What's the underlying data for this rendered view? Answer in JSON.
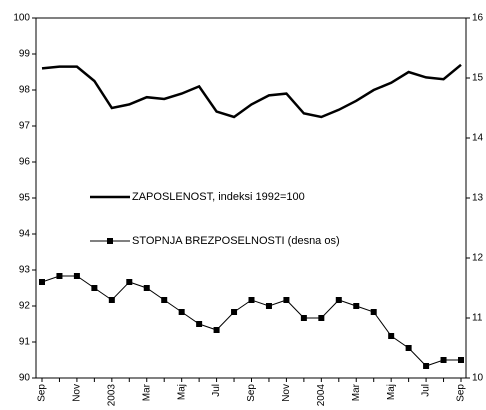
{
  "chart_data": {
    "type": "line",
    "categories": [
      "Sep",
      null,
      "Nov",
      null,
      "2003",
      null,
      "Mar",
      null,
      "Maj",
      null,
      "Jul",
      null,
      "Sep",
      null,
      "Nov",
      null,
      "2004",
      null,
      "Mar",
      null,
      "Maj",
      null,
      "Jul",
      null,
      "Sep"
    ],
    "series": [
      {
        "name": "ZAPOSLENOST, indeksi 1992=100",
        "color": "#000000",
        "axis": "y",
        "values": [
          98.6,
          98.65,
          98.65,
          98.25,
          97.5,
          97.6,
          97.8,
          97.75,
          97.9,
          98.1,
          97.4,
          97.25,
          97.6,
          97.85,
          97.9,
          97.35,
          97.25,
          97.45,
          97.7,
          98.0,
          98.2,
          98.5,
          98.35,
          98.3,
          98.7
        ]
      },
      {
        "name": "STOPNJA BREZPOSELNOSTI (desna os)",
        "color": "#000000",
        "axis": "y2",
        "marker": "square",
        "values": [
          11.6,
          11.7,
          11.7,
          11.5,
          11.3,
          11.6,
          11.5,
          11.3,
          11.1,
          10.9,
          10.8,
          11.1,
          11.3,
          11.2,
          11.3,
          11.0,
          11.0,
          11.3,
          11.2,
          11.1,
          10.7,
          10.5,
          10.2,
          10.3,
          10.3
        ]
      }
    ],
    "ylim": [
      90,
      100
    ],
    "yticks": [
      90,
      91,
      92,
      93,
      94,
      95,
      96,
      97,
      98,
      99,
      100
    ],
    "y2lim": [
      10,
      16
    ],
    "y2ticks": [
      10,
      11,
      12,
      13,
      14,
      15,
      16
    ],
    "legend": "center-left"
  }
}
